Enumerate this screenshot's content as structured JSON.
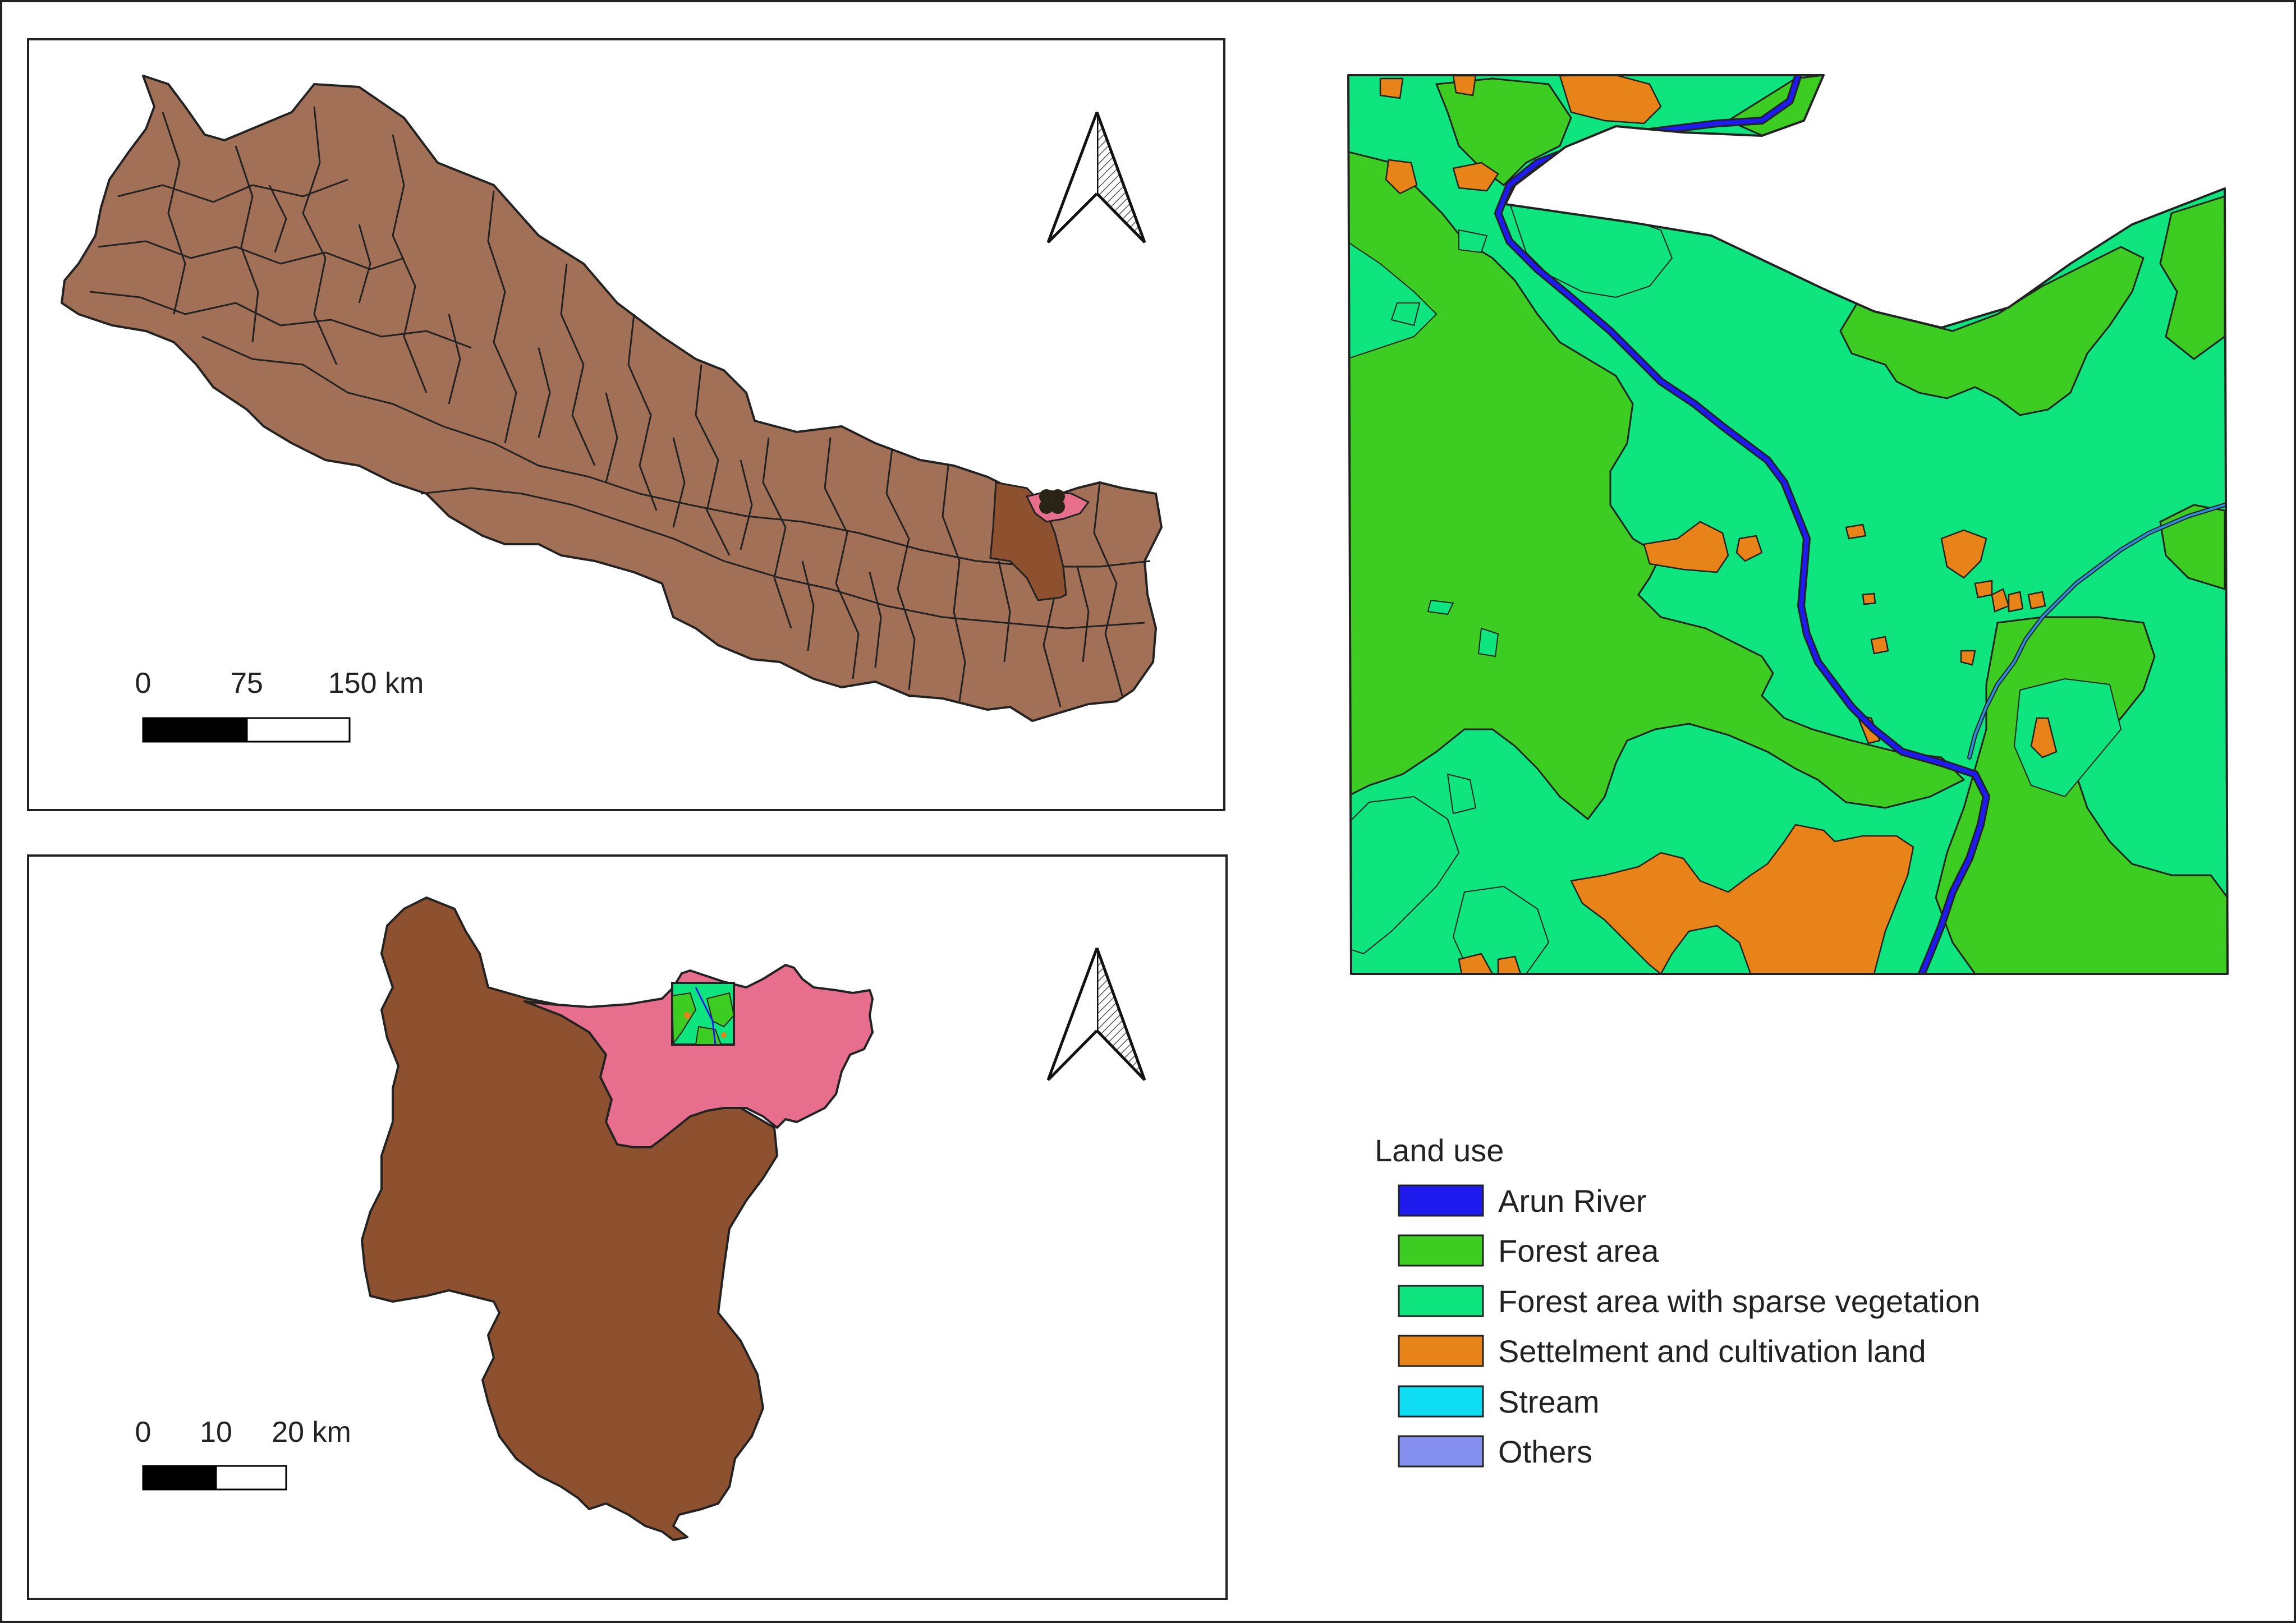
{
  "scale_nepal": {
    "ticks": [
      "0",
      "75",
      "150 km"
    ]
  },
  "scale_district": {
    "ticks": [
      "0",
      "10",
      "20 km"
    ]
  },
  "legend": {
    "title": "Land use",
    "items": [
      {
        "label": "Arun River",
        "color": "#1f1aee"
      },
      {
        "label": "Forest area",
        "color": "#3dcc22"
      },
      {
        "label": "Forest area with sparse vegetation",
        "color": "#0ee57e"
      },
      {
        "label": "Settelment and cultivation land",
        "color": "#e8831a"
      },
      {
        "label": "Stream",
        "color": "#0ddcf2"
      },
      {
        "label": "Others",
        "color": "#8590ee"
      }
    ]
  },
  "colors": {
    "nepal_fill": "#a27057",
    "district_fill": "#8e5130",
    "municipality_fill": "#e76e8c",
    "river": "#1f1aee",
    "stream": "#2b8fe0"
  },
  "icons": {
    "north_arrow": "north-arrow-icon"
  }
}
